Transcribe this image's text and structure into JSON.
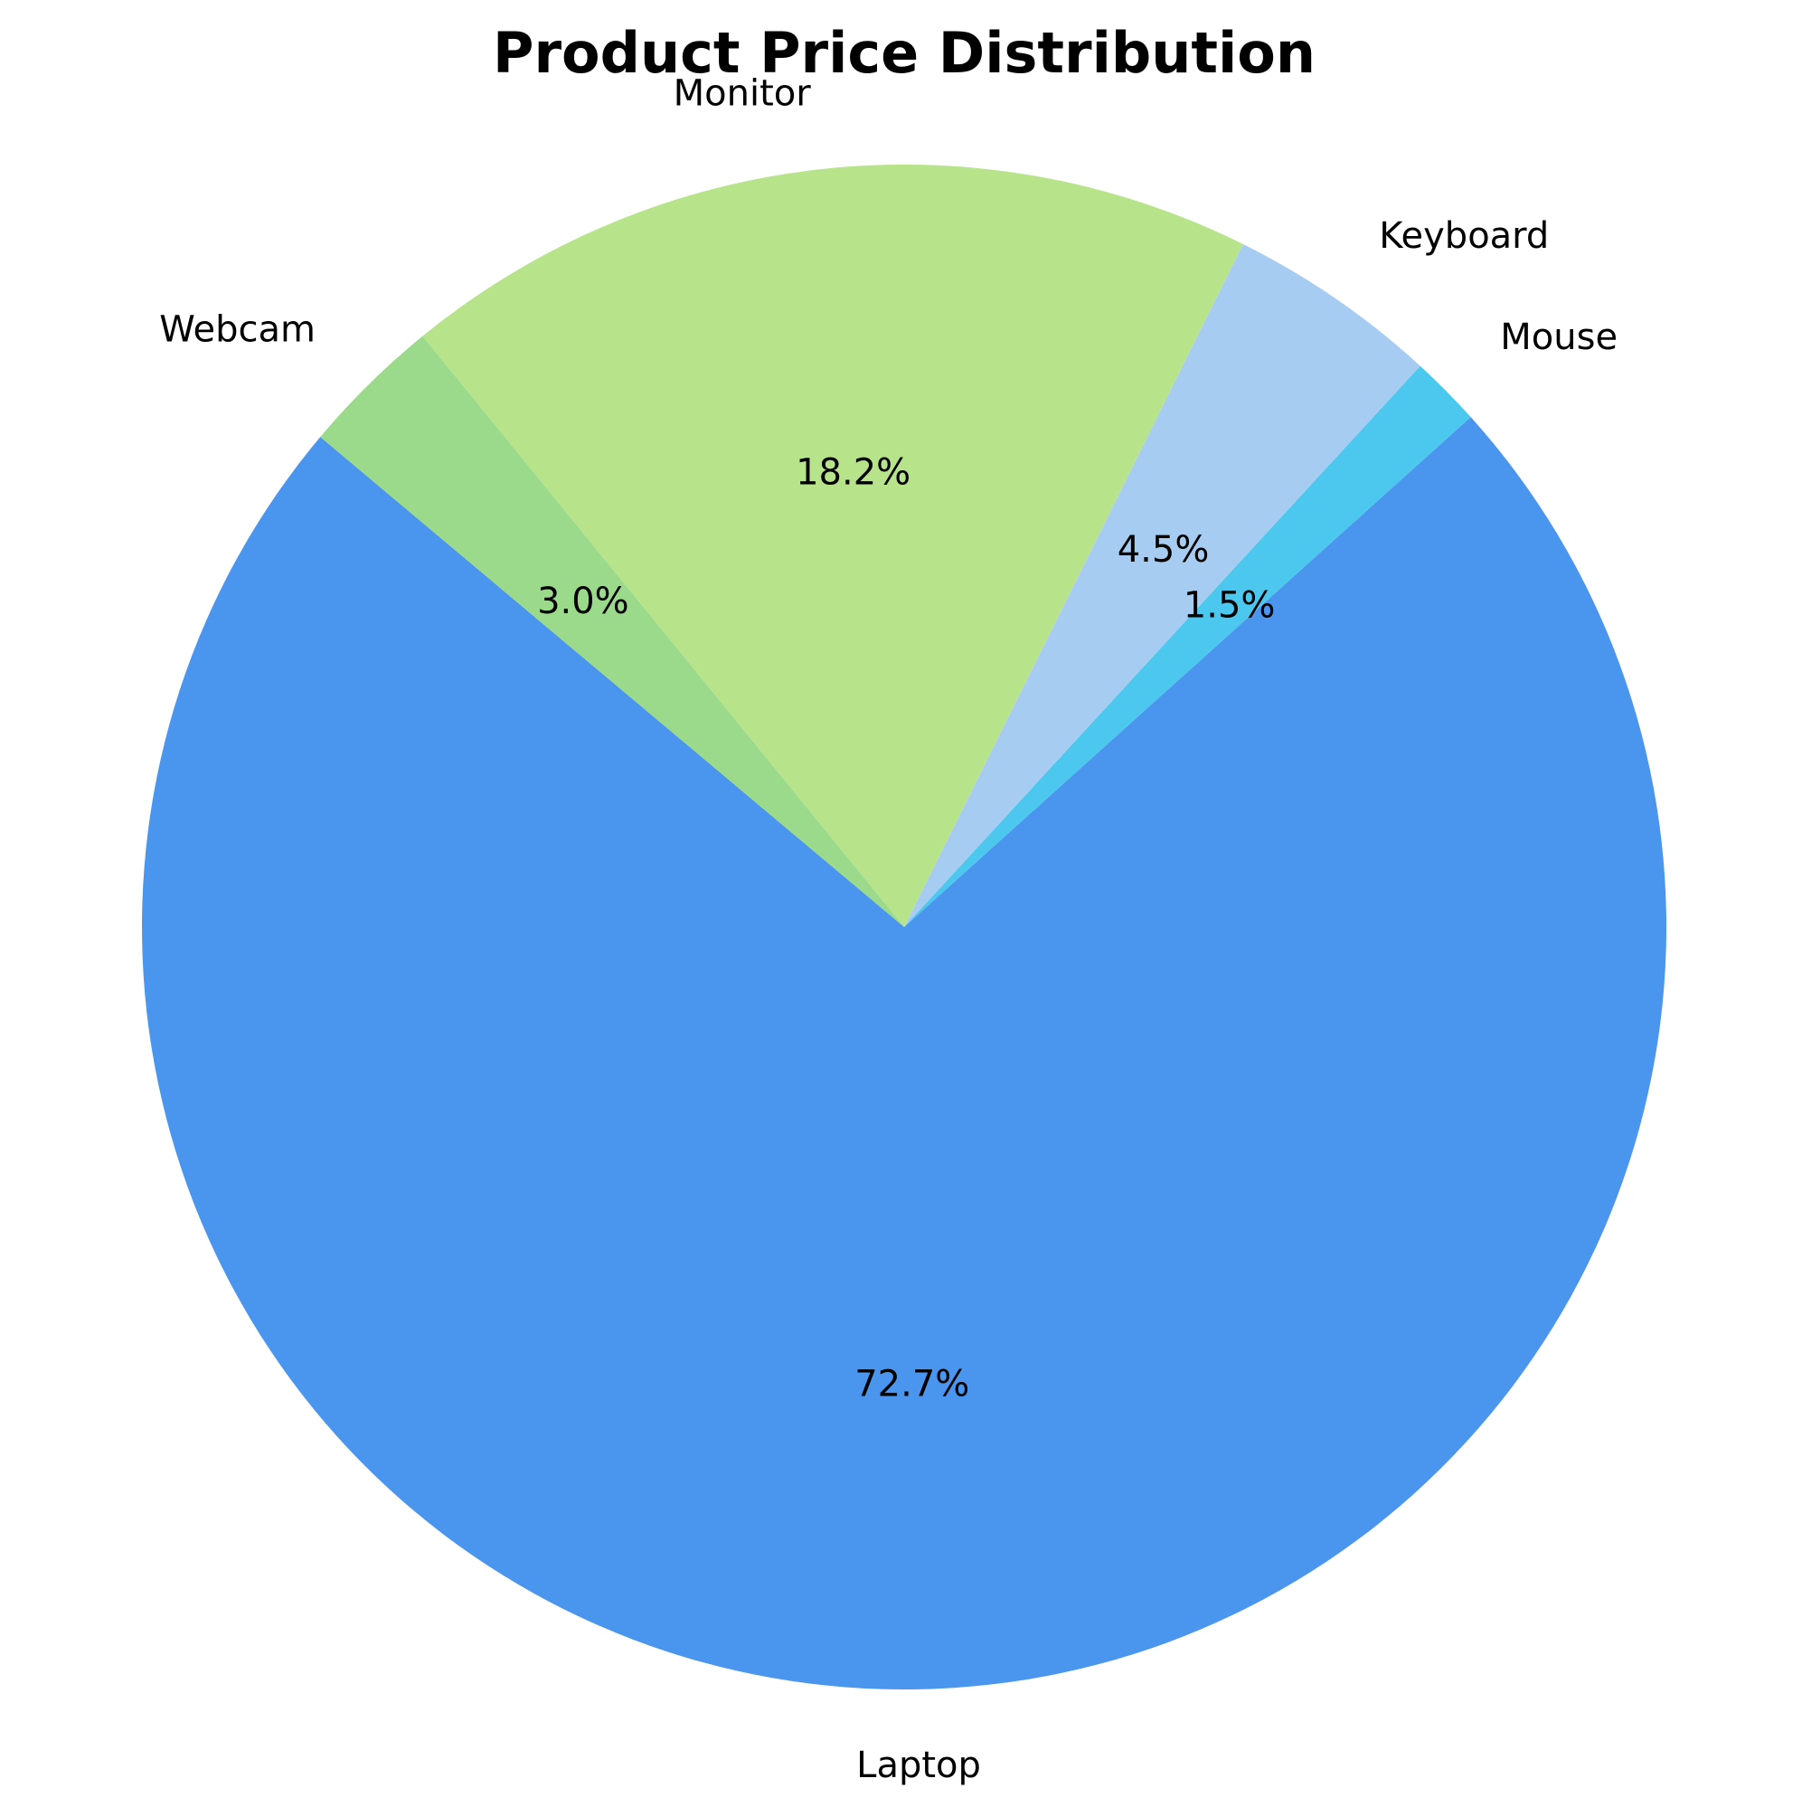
{
  "chart_data": {
    "type": "pie",
    "title": "Product Price Distribution",
    "categories": [
      "Laptop",
      "Mouse",
      "Keyboard",
      "Monitor",
      "Webcam"
    ],
    "values": [
      72.7,
      1.5,
      4.5,
      18.2,
      3.0
    ],
    "value_labels": [
      "72.7%",
      "1.5%",
      "4.5%",
      "18.2%",
      "3.0%"
    ],
    "colors": [
      "#4A95EE",
      "#4CC7EE",
      "#A6CDF1",
      "#B7E48A",
      "#9BDA8A"
    ],
    "start_angle_deg": 140,
    "direction": "counterclockwise"
  }
}
